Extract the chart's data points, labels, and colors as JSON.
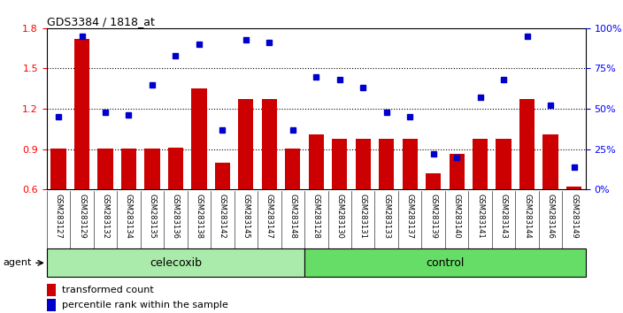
{
  "title": "GDS3384 / 1818_at",
  "samples": [
    "GSM283127",
    "GSM283129",
    "GSM283132",
    "GSM283134",
    "GSM283135",
    "GSM283136",
    "GSM283138",
    "GSM283142",
    "GSM283145",
    "GSM283147",
    "GSM283148",
    "GSM283128",
    "GSM283130",
    "GSM283131",
    "GSM283133",
    "GSM283137",
    "GSM283139",
    "GSM283140",
    "GSM283141",
    "GSM283143",
    "GSM283144",
    "GSM283146",
    "GSM283149"
  ],
  "transformed_count": [
    0.905,
    1.72,
    0.905,
    0.905,
    0.905,
    0.91,
    1.35,
    0.8,
    1.27,
    1.27,
    0.905,
    1.01,
    0.975,
    0.975,
    0.975,
    0.975,
    0.72,
    0.865,
    0.975,
    0.975,
    1.27,
    1.01,
    0.62
  ],
  "percentile_rank": [
    45,
    95,
    48,
    46,
    65,
    83,
    90,
    37,
    93,
    91,
    37,
    70,
    68,
    63,
    48,
    45,
    22,
    20,
    57,
    68,
    95,
    52,
    14
  ],
  "group_labels": [
    "celecoxib",
    "control"
  ],
  "group_celecoxib_count": 11,
  "group_control_count": 12,
  "ylim_left": [
    0.6,
    1.8
  ],
  "ylim_right": [
    0,
    100
  ],
  "yticks_left": [
    0.6,
    0.9,
    1.2,
    1.5,
    1.8
  ],
  "yticks_right": [
    0,
    25,
    50,
    75,
    100
  ],
  "ytick_labels_right": [
    "0%",
    "25%",
    "50%",
    "75%",
    "100%"
  ],
  "bar_color": "#cc0000",
  "dot_color": "#0000cc",
  "background_color": "#ffffff",
  "xticklabel_bg": "#c8c8c8",
  "celecoxib_bg": "#aaeaaa",
  "control_bg": "#66dd66",
  "agent_label": "agent",
  "legend_transformed": "transformed count",
  "legend_percentile": "percentile rank within the sample"
}
